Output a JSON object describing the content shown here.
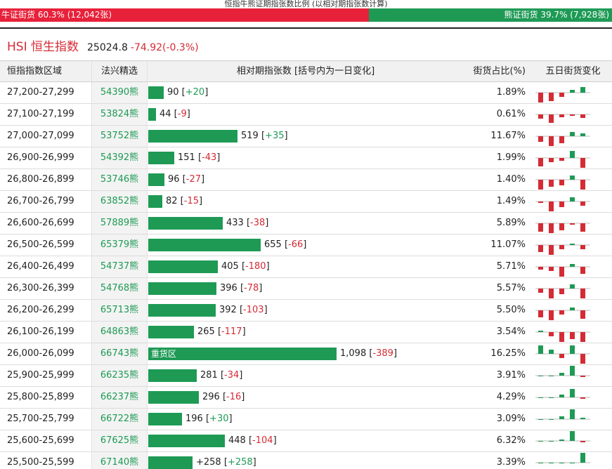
{
  "header": {
    "title": "恒指牛熊证期指张数比例 (以相对期指张数计算)",
    "bull_label": "牛证街货 60.3% (12,042张)",
    "bear_label": "熊证街货 39.7% (7,928张)"
  },
  "index": {
    "name": "HSI 恒生指数",
    "price": "25024.8",
    "change": "-74.92(-0.3%)"
  },
  "table": {
    "columns": {
      "range": "恒指指数区域",
      "pick": "法兴精选",
      "contracts": "相对期指张数 [括号内为一日变化]",
      "pct": "街货占比(%)",
      "five_day": "五日街货变化"
    },
    "heavy_label": "重货区",
    "rows": [
      {
        "range": "27,200-27,299",
        "pick": "54390熊",
        "contracts": 90,
        "contracts_text": "90",
        "change": "+20",
        "pct": "1.89%",
        "five_day": [
          -14,
          -12,
          -6,
          4,
          8
        ],
        "heavy": false
      },
      {
        "range": "27,100-27,199",
        "pick": "53824熊",
        "contracts": 44,
        "contracts_text": "44",
        "change": "-9",
        "pct": "0.61%",
        "five_day": [
          -6,
          -12,
          -4,
          -2,
          -5
        ],
        "heavy": false
      },
      {
        "range": "27,000-27,099",
        "pick": "53752熊",
        "contracts": 519,
        "contracts_text": "519",
        "change": "+35",
        "pct": "11.67%",
        "five_day": [
          -8,
          -14,
          -10,
          6,
          4
        ],
        "heavy": false
      },
      {
        "range": "26,900-26,999",
        "pick": "54392熊",
        "contracts": 151,
        "contracts_text": "151",
        "change": "-43",
        "pct": "1.99%",
        "five_day": [
          -12,
          -6,
          -4,
          10,
          -14
        ],
        "heavy": false
      },
      {
        "range": "26,800-26,899",
        "pick": "53746熊",
        "contracts": 96,
        "contracts_text": "96",
        "change": "-27",
        "pct": "1.40%",
        "five_day": [
          -14,
          -10,
          -8,
          6,
          -14
        ],
        "heavy": false
      },
      {
        "range": "26,700-26,799",
        "pick": "63852熊",
        "contracts": 82,
        "contracts_text": "82",
        "change": "-15",
        "pct": "1.49%",
        "five_day": [
          -2,
          -14,
          -8,
          6,
          -6
        ],
        "heavy": false
      },
      {
        "range": "26,600-26,699",
        "pick": "57889熊",
        "contracts": 433,
        "contracts_text": "433",
        "change": "-38",
        "pct": "5.89%",
        "five_day": [
          -12,
          -14,
          -10,
          -2,
          -12
        ],
        "heavy": false
      },
      {
        "range": "26,500-26,599",
        "pick": "65379熊",
        "contracts": 655,
        "contracts_text": "655",
        "change": "-66",
        "pct": "11.07%",
        "five_day": [
          -10,
          -14,
          -6,
          2,
          -6
        ],
        "heavy": false
      },
      {
        "range": "26,400-26,499",
        "pick": "54737熊",
        "contracts": 405,
        "contracts_text": "405",
        "change": "-180",
        "pct": "5.71%",
        "five_day": [
          -4,
          -6,
          -14,
          4,
          -10
        ],
        "heavy": false
      },
      {
        "range": "26,300-26,399",
        "pick": "54768熊",
        "contracts": 396,
        "contracts_text": "396",
        "change": "-78",
        "pct": "5.57%",
        "five_day": [
          -6,
          -14,
          -8,
          6,
          -14
        ],
        "heavy": false
      },
      {
        "range": "26,200-26,299",
        "pick": "65713熊",
        "contracts": 392,
        "contracts_text": "392",
        "change": "-103",
        "pct": "5.50%",
        "five_day": [
          -10,
          -14,
          -6,
          4,
          -12
        ],
        "heavy": false
      },
      {
        "range": "26,100-26,199",
        "pick": "64863熊",
        "contracts": 265,
        "contracts_text": "265",
        "change": "-117",
        "pct": "3.54%",
        "five_day": [
          2,
          -6,
          -14,
          -10,
          -14
        ],
        "heavy": false
      },
      {
        "range": "26,000-26,099",
        "pick": "66743熊",
        "contracts": 1098,
        "contracts_text": "1,098",
        "change": "-389",
        "pct": "16.25%",
        "five_day": [
          12,
          6,
          -6,
          12,
          -14
        ],
        "heavy": true
      },
      {
        "range": "25,900-25,999",
        "pick": "66235熊",
        "contracts": 281,
        "contracts_text": "281",
        "change": "-34",
        "pct": "3.91%",
        "five_day": [
          0,
          0,
          4,
          14,
          -2
        ],
        "heavy": false
      },
      {
        "range": "25,800-25,899",
        "pick": "66237熊",
        "contracts": 296,
        "contracts_text": "296",
        "change": "-16",
        "pct": "4.29%",
        "five_day": [
          0,
          0,
          4,
          12,
          -2
        ],
        "heavy": false
      },
      {
        "range": "25,700-25,799",
        "pick": "66722熊",
        "contracts": 196,
        "contracts_text": "196",
        "change": "+30",
        "pct": "3.09%",
        "five_day": [
          0,
          0,
          4,
          14,
          2
        ],
        "heavy": false
      },
      {
        "range": "25,600-25,699",
        "pick": "67625熊",
        "contracts": 448,
        "contracts_text": "448",
        "change": "-104",
        "pct": "6.32%",
        "five_day": [
          0,
          0,
          2,
          14,
          -2
        ],
        "heavy": false
      },
      {
        "range": "25,500-25,599",
        "pick": "67140熊",
        "contracts": 258,
        "contracts_text": "+258",
        "change": "+258",
        "pct": "3.39%",
        "five_day": [
          0,
          0,
          0,
          0,
          14
        ],
        "heavy": false
      }
    ]
  },
  "colors": {
    "bull": "#e8213a",
    "bear": "#1e9a55",
    "up": "#1e9a55",
    "down": "#d42b35"
  }
}
